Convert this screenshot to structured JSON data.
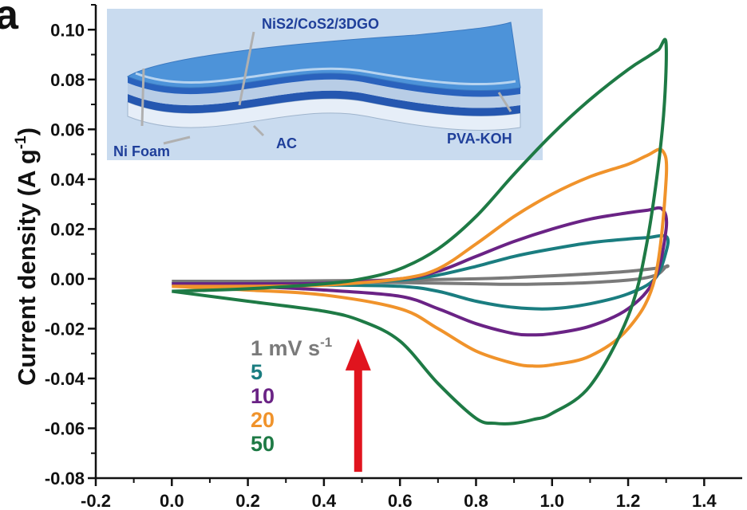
{
  "chart_data": {
    "type": "line",
    "panel_label": "a",
    "ylabel": "Current density (A g",
    "ylabel_sup": "-1",
    "ylabel_close": ")",
    "xlabel": "",
    "xlim": [
      -0.2,
      1.5
    ],
    "ylim": [
      -0.08,
      0.11
    ],
    "x_ticks": [
      -0.2,
      0.0,
      0.2,
      0.4,
      0.6,
      0.8,
      1.0,
      1.2,
      1.4
    ],
    "x_tick_labels": [
      "-0.2",
      "0.0",
      "0.2",
      "0.4",
      "0.6",
      "0.8",
      "1.0",
      "1.2",
      "1.4"
    ],
    "y_ticks": [
      -0.08,
      -0.06,
      -0.04,
      -0.02,
      0.0,
      0.02,
      0.04,
      0.06,
      0.08,
      0.1
    ],
    "y_tick_labels": [
      "-0.08",
      "-0.06",
      "-0.04",
      "-0.02",
      "0.00",
      "0.02",
      "0.04",
      "0.06",
      "0.08",
      "0.10"
    ],
    "grid": false,
    "series": [
      {
        "name": "1 mV s",
        "name_sup": "-1",
        "color": "#7a7a7a",
        "x": [
          0.0,
          0.2,
          0.4,
          0.6,
          0.8,
          0.9,
          1.0,
          1.1,
          1.2,
          1.25,
          1.3,
          1.3,
          1.28,
          1.25,
          1.2,
          1.1,
          1.0,
          0.9,
          0.8,
          0.6,
          0.4,
          0.2,
          0.0
        ],
        "y": [
          -0.001,
          -0.001,
          -0.0008,
          -0.0005,
          0.0,
          0.0005,
          0.0012,
          0.002,
          0.003,
          0.0038,
          0.0048,
          0.005,
          0.002,
          0.0005,
          -0.0005,
          -0.0015,
          -0.002,
          -0.0022,
          -0.002,
          -0.0015,
          -0.0012,
          -0.0012,
          -0.001
        ]
      },
      {
        "name": "5",
        "color": "#1a7d80",
        "x": [
          0.0,
          0.2,
          0.4,
          0.6,
          0.7,
          0.8,
          0.9,
          1.0,
          1.1,
          1.2,
          1.25,
          1.3,
          1.3,
          1.27,
          1.2,
          1.1,
          1.0,
          0.9,
          0.8,
          0.7,
          0.6,
          0.4,
          0.2,
          0.0
        ],
        "y": [
          -0.002,
          -0.002,
          -0.0018,
          -0.0005,
          0.0015,
          0.005,
          0.009,
          0.012,
          0.0145,
          0.016,
          0.0165,
          0.017,
          0.011,
          0.0,
          -0.006,
          -0.01,
          -0.012,
          -0.0115,
          -0.009,
          -0.005,
          -0.003,
          -0.0025,
          -0.0025,
          -0.002
        ]
      },
      {
        "name": "10",
        "color": "#6a2385",
        "x": [
          0.0,
          0.2,
          0.4,
          0.6,
          0.7,
          0.8,
          0.9,
          1.0,
          1.1,
          1.2,
          1.25,
          1.29,
          1.3,
          1.27,
          1.2,
          1.1,
          1.0,
          0.95,
          0.9,
          0.8,
          0.7,
          0.6,
          0.4,
          0.2,
          0.0
        ],
        "y": [
          -0.002,
          -0.002,
          -0.0018,
          0.0,
          0.003,
          0.009,
          0.015,
          0.02,
          0.024,
          0.0265,
          0.0275,
          0.028,
          0.02,
          0.0,
          -0.012,
          -0.019,
          -0.022,
          -0.0225,
          -0.022,
          -0.018,
          -0.012,
          -0.007,
          -0.0045,
          -0.003,
          -0.002
        ]
      },
      {
        "name": "20",
        "color": "#f0932b",
        "x": [
          0.0,
          0.2,
          0.4,
          0.6,
          0.7,
          0.8,
          0.9,
          1.0,
          1.1,
          1.2,
          1.25,
          1.29,
          1.3,
          1.27,
          1.2,
          1.1,
          1.0,
          0.95,
          0.9,
          0.8,
          0.7,
          0.6,
          0.4,
          0.2,
          0.0
        ],
        "y": [
          -0.003,
          -0.003,
          -0.0025,
          0.0,
          0.004,
          0.014,
          0.025,
          0.034,
          0.041,
          0.046,
          0.0495,
          0.0515,
          0.04,
          0.0,
          -0.02,
          -0.031,
          -0.0345,
          -0.035,
          -0.034,
          -0.029,
          -0.02,
          -0.012,
          -0.0065,
          -0.0045,
          -0.003
        ]
      },
      {
        "name": "50",
        "color": "#1e7a45",
        "x": [
          0.0,
          0.2,
          0.4,
          0.5,
          0.6,
          0.7,
          0.8,
          0.9,
          1.0,
          1.1,
          1.2,
          1.25,
          1.28,
          1.3,
          1.29,
          1.25,
          1.2,
          1.1,
          1.0,
          0.95,
          0.9,
          0.85,
          0.8,
          0.7,
          0.6,
          0.5,
          0.4,
          0.2,
          0.0
        ],
        "y": [
          -0.005,
          -0.004,
          -0.002,
          0.0,
          0.004,
          0.012,
          0.025,
          0.042,
          0.058,
          0.072,
          0.084,
          0.089,
          0.092,
          0.094,
          0.06,
          0.015,
          -0.015,
          -0.043,
          -0.054,
          -0.0565,
          -0.058,
          -0.058,
          -0.056,
          -0.042,
          -0.025,
          -0.017,
          -0.013,
          -0.009,
          -0.005
        ]
      }
    ],
    "annotation_arrow": {
      "x": 0.49,
      "y_from": -0.0775,
      "y_to": -0.024,
      "color": "#e0141e"
    }
  },
  "inset": {
    "labels": {
      "top": "NiS2/CoS2/3DGO",
      "ni_foam": "Ni Foam",
      "ac": "AC",
      "pva_koh": "PVA-KOH"
    },
    "colors": {
      "background": "#c7d8ee",
      "layer": "#4a90d9",
      "dark_layer": "#2456b0",
      "text": "#1f3f9a"
    }
  }
}
